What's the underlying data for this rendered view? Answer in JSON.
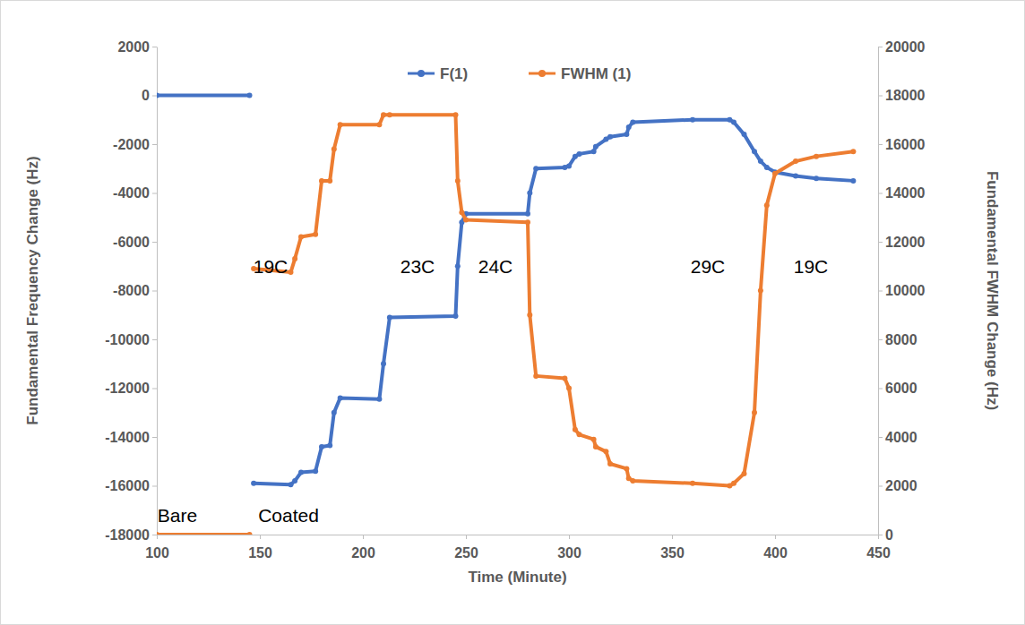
{
  "chart_data": {
    "type": "line",
    "x_label": "Time (Minute)",
    "y_label": "Fundamental Frequency Change (Hz)",
    "y2_label": "Fundamental FWHM Change (Hz)",
    "legend": "top",
    "grid": false,
    "marker": "circle",
    "xlim": [
      100,
      450
    ],
    "xticks": [
      100,
      150,
      200,
      250,
      300,
      350,
      400,
      450
    ],
    "ylim": [
      -18000,
      2000
    ],
    "yticks": [
      -18000,
      -16000,
      -14000,
      -12000,
      -10000,
      -8000,
      -6000,
      -4000,
      -2000,
      0,
      2000
    ],
    "y2lim": [
      0,
      20000
    ],
    "y2ticks": [
      0,
      2000,
      4000,
      6000,
      8000,
      10000,
      12000,
      14000,
      16000,
      18000,
      20000
    ],
    "annotations": [
      "19C",
      "23C",
      "24C",
      "29C",
      "19C",
      "Bare",
      "Coated"
    ],
    "x": [
      100,
      145,
      146,
      147,
      165,
      167,
      170,
      177,
      180,
      184,
      186,
      189,
      208,
      210,
      213,
      245,
      246,
      248,
      250,
      280,
      281,
      284,
      298,
      300,
      303,
      305,
      312,
      313,
      318,
      320,
      328,
      329,
      331,
      360,
      378,
      380,
      385,
      390,
      393,
      396,
      400,
      410,
      420,
      438
    ],
    "series": [
      {
        "name": "F(1)",
        "color": "#4472c4",
        "axis": "y",
        "values": [
          0,
          0,
          null,
          -15900,
          -15950,
          -15800,
          -15450,
          -15400,
          -14400,
          -14350,
          -13000,
          -12400,
          -12450,
          -11000,
          -9100,
          -9050,
          -7000,
          -5200,
          -4850,
          -4850,
          -4000,
          -3000,
          -2950,
          -2900,
          -2500,
          -2400,
          -2300,
          -2100,
          -1800,
          -1700,
          -1600,
          -1300,
          -1100,
          -1000,
          -1000,
          -1100,
          -1600,
          -2300,
          -2700,
          -2950,
          -3150,
          -3300,
          -3400,
          -3500
        ]
      },
      {
        "name": "FWHM (1)",
        "color": "#ed7d31",
        "axis": "y2",
        "values": [
          0,
          0,
          null,
          10900,
          10750,
          11300,
          12200,
          12300,
          14500,
          14500,
          15800,
          16800,
          16800,
          17200,
          17200,
          17200,
          14500,
          13200,
          12900,
          12800,
          9000,
          6500,
          6400,
          6000,
          4300,
          4100,
          3900,
          3600,
          3400,
          2900,
          2700,
          2300,
          2200,
          2100,
          2000,
          2100,
          2500,
          5000,
          10000,
          13500,
          14800,
          15300,
          15500,
          15700
        ]
      }
    ]
  }
}
